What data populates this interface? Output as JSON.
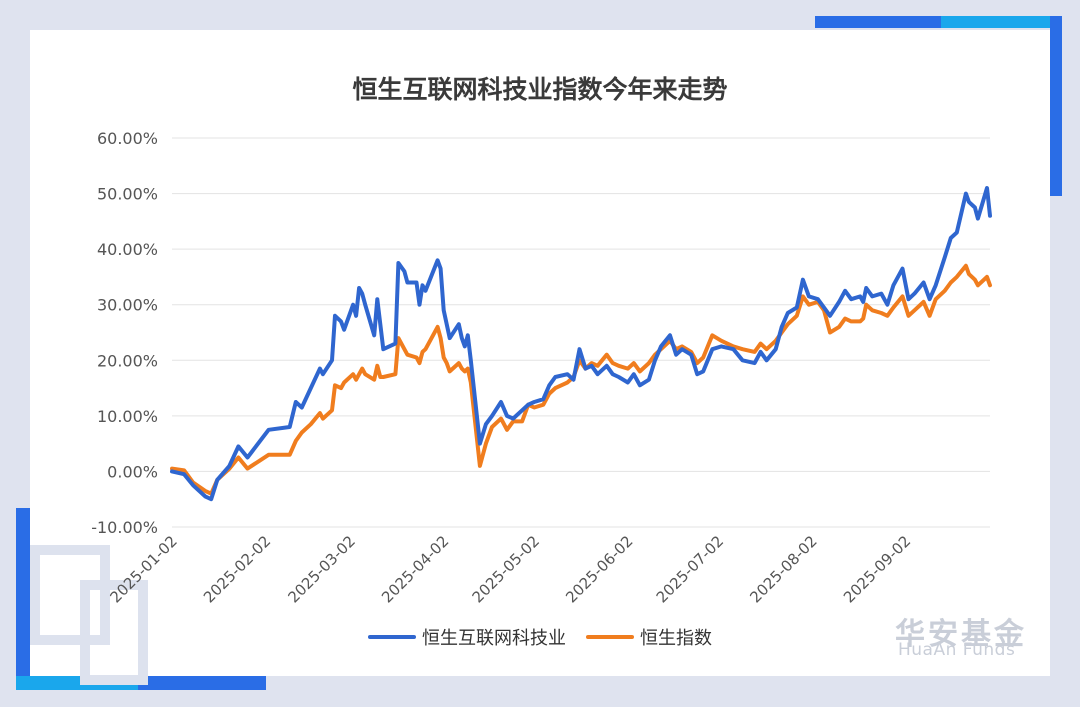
{
  "chart_data": {
    "type": "line",
    "title": "恒生互联网科技业指数今年来走势",
    "ylim": [
      -10,
      60
    ],
    "ytick_labels": [
      "60.00%",
      "50.00%",
      "40.00%",
      "30.00%",
      "20.00%",
      "10.00%",
      "0.00%",
      "-10.00%"
    ],
    "yticks": [
      60,
      50,
      40,
      30,
      20,
      10,
      0,
      -10
    ],
    "x_start": "2025-01-02",
    "x_end": "2025-09-30",
    "xtick_labels": [
      "2025-01-02",
      "2025-02-02",
      "2025-03-02",
      "2025-04-02",
      "2025-05-02",
      "2025-06-02",
      "2025-07-02",
      "2025-08-02",
      "2025-09-02"
    ],
    "grid": true,
    "legend": "bottom",
    "series": [
      {
        "name": "恒生互联网科技业",
        "color": "#2f66cf",
        "points": [
          [
            "2025-01-02",
            0.0
          ],
          [
            "2025-01-06",
            -0.5
          ],
          [
            "2025-01-09",
            -2.5
          ],
          [
            "2025-01-13",
            -4.5
          ],
          [
            "2025-01-15",
            -5.0
          ],
          [
            "2025-01-17",
            -1.5
          ],
          [
            "2025-01-21",
            1.0
          ],
          [
            "2025-01-24",
            4.5
          ],
          [
            "2025-01-27",
            2.5
          ],
          [
            "2025-02-03",
            7.5
          ],
          [
            "2025-02-10",
            8.0
          ],
          [
            "2025-02-12",
            12.5
          ],
          [
            "2025-02-14",
            11.5
          ],
          [
            "2025-02-17",
            15.0
          ],
          [
            "2025-02-20",
            18.5
          ],
          [
            "2025-02-21",
            17.5
          ],
          [
            "2025-02-24",
            20.0
          ],
          [
            "2025-02-25",
            28.0
          ],
          [
            "2025-02-27",
            27.0
          ],
          [
            "2025-02-28",
            25.5
          ],
          [
            "2025-03-03",
            30.0
          ],
          [
            "2025-03-04",
            28.0
          ],
          [
            "2025-03-05",
            33.0
          ],
          [
            "2025-03-06",
            32.0
          ],
          [
            "2025-03-07",
            30.0
          ],
          [
            "2025-03-10",
            24.5
          ],
          [
            "2025-03-11",
            31.0
          ],
          [
            "2025-03-12",
            26.5
          ],
          [
            "2025-03-13",
            22.0
          ],
          [
            "2025-03-17",
            23.0
          ],
          [
            "2025-03-18",
            37.5
          ],
          [
            "2025-03-20",
            36.0
          ],
          [
            "2025-03-21",
            34.0
          ],
          [
            "2025-03-24",
            34.0
          ],
          [
            "2025-03-25",
            30.0
          ],
          [
            "2025-03-26",
            33.5
          ],
          [
            "2025-03-27",
            32.5
          ],
          [
            "2025-03-31",
            38.0
          ],
          [
            "2025-04-01",
            36.5
          ],
          [
            "2025-04-02",
            29.0
          ],
          [
            "2025-04-03",
            26.5
          ],
          [
            "2025-04-04",
            24.0
          ],
          [
            "2025-04-07",
            26.5
          ],
          [
            "2025-04-08",
            24.0
          ],
          [
            "2025-04-09",
            22.5
          ],
          [
            "2025-04-10",
            24.5
          ],
          [
            "2025-04-11",
            20.0
          ],
          [
            "2025-04-14",
            5.0
          ],
          [
            "2025-04-16",
            8.5
          ],
          [
            "2025-04-18",
            10.0
          ],
          [
            "2025-04-21",
            12.5
          ],
          [
            "2025-04-23",
            10.0
          ],
          [
            "2025-04-25",
            9.5
          ],
          [
            "2025-04-28",
            11.0
          ],
          [
            "2025-04-30",
            12.0
          ],
          [
            "2025-05-02",
            12.5
          ],
          [
            "2025-05-05",
            13.0
          ],
          [
            "2025-05-07",
            15.5
          ],
          [
            "2025-05-09",
            17.0
          ],
          [
            "2025-05-13",
            17.5
          ],
          [
            "2025-05-15",
            16.5
          ],
          [
            "2025-05-17",
            22.0
          ],
          [
            "2025-05-19",
            18.5
          ],
          [
            "2025-05-21",
            19.0
          ],
          [
            "2025-05-23",
            17.5
          ],
          [
            "2025-05-26",
            19.0
          ],
          [
            "2025-05-28",
            17.5
          ],
          [
            "2025-05-30",
            17.0
          ],
          [
            "2025-06-02",
            16.0
          ],
          [
            "2025-06-04",
            17.5
          ],
          [
            "2025-06-06",
            15.5
          ],
          [
            "2025-06-09",
            16.5
          ],
          [
            "2025-06-11",
            20.0
          ],
          [
            "2025-06-13",
            22.5
          ],
          [
            "2025-06-16",
            24.5
          ],
          [
            "2025-06-18",
            21.0
          ],
          [
            "2025-06-20",
            22.0
          ],
          [
            "2025-06-23",
            21.0
          ],
          [
            "2025-06-25",
            17.5
          ],
          [
            "2025-06-27",
            18.0
          ],
          [
            "2025-06-30",
            22.0
          ],
          [
            "2025-07-03",
            22.5
          ],
          [
            "2025-07-07",
            22.0
          ],
          [
            "2025-07-10",
            20.0
          ],
          [
            "2025-07-14",
            19.5
          ],
          [
            "2025-07-16",
            21.5
          ],
          [
            "2025-07-18",
            20.0
          ],
          [
            "2025-07-21",
            22.0
          ],
          [
            "2025-07-23",
            26.0
          ],
          [
            "2025-07-25",
            28.5
          ],
          [
            "2025-07-28",
            29.5
          ],
          [
            "2025-07-30",
            34.5
          ],
          [
            "2025-08-01",
            31.5
          ],
          [
            "2025-08-04",
            31.0
          ],
          [
            "2025-08-06",
            29.5
          ],
          [
            "2025-08-08",
            28.0
          ],
          [
            "2025-08-11",
            30.5
          ],
          [
            "2025-08-13",
            32.5
          ],
          [
            "2025-08-15",
            31.0
          ],
          [
            "2025-08-18",
            31.5
          ],
          [
            "2025-08-19",
            30.5
          ],
          [
            "2025-08-20",
            33.0
          ],
          [
            "2025-08-22",
            31.5
          ],
          [
            "2025-08-25",
            32.0
          ],
          [
            "2025-08-27",
            30.0
          ],
          [
            "2025-08-29",
            33.5
          ],
          [
            "2025-09-01",
            36.5
          ],
          [
            "2025-09-03",
            31.0
          ],
          [
            "2025-09-05",
            32.0
          ],
          [
            "2025-09-08",
            34.0
          ],
          [
            "2025-09-10",
            31.0
          ],
          [
            "2025-09-12",
            33.5
          ],
          [
            "2025-09-15",
            38.5
          ],
          [
            "2025-09-17",
            42.0
          ],
          [
            "2025-09-19",
            43.0
          ],
          [
            "2025-09-22",
            50.0
          ],
          [
            "2025-09-23",
            48.5
          ],
          [
            "2025-09-25",
            47.5
          ],
          [
            "2025-09-26",
            45.5
          ],
          [
            "2025-09-29",
            51.0
          ],
          [
            "2025-09-30",
            46.0
          ]
        ]
      },
      {
        "name": "恒生指数",
        "color": "#f07d1e",
        "points": [
          [
            "2025-01-02",
            0.5
          ],
          [
            "2025-01-06",
            0.2
          ],
          [
            "2025-01-09",
            -2.0
          ],
          [
            "2025-01-13",
            -3.5
          ],
          [
            "2025-01-15",
            -4.0
          ],
          [
            "2025-01-17",
            -1.5
          ],
          [
            "2025-01-21",
            0.5
          ],
          [
            "2025-01-24",
            2.5
          ],
          [
            "2025-01-27",
            0.5
          ],
          [
            "2025-02-03",
            3.0
          ],
          [
            "2025-02-10",
            3.0
          ],
          [
            "2025-02-12",
            5.5
          ],
          [
            "2025-02-14",
            7.0
          ],
          [
            "2025-02-17",
            8.5
          ],
          [
            "2025-02-20",
            10.5
          ],
          [
            "2025-02-21",
            9.5
          ],
          [
            "2025-02-24",
            11.0
          ],
          [
            "2025-02-25",
            15.5
          ],
          [
            "2025-02-27",
            15.0
          ],
          [
            "2025-02-28",
            16.0
          ],
          [
            "2025-03-03",
            17.5
          ],
          [
            "2025-03-04",
            16.5
          ],
          [
            "2025-03-05",
            17.5
          ],
          [
            "2025-03-06",
            18.5
          ],
          [
            "2025-03-07",
            17.5
          ],
          [
            "2025-03-10",
            16.5
          ],
          [
            "2025-03-11",
            19.0
          ],
          [
            "2025-03-12",
            17.0
          ],
          [
            "2025-03-13",
            17.0
          ],
          [
            "2025-03-17",
            17.5
          ],
          [
            "2025-03-18",
            24.0
          ],
          [
            "2025-03-20",
            22.0
          ],
          [
            "2025-03-21",
            21.0
          ],
          [
            "2025-03-24",
            20.5
          ],
          [
            "2025-03-25",
            19.5
          ],
          [
            "2025-03-26",
            21.5
          ],
          [
            "2025-03-27",
            22.0
          ],
          [
            "2025-03-31",
            26.0
          ],
          [
            "2025-04-01",
            24.0
          ],
          [
            "2025-04-02",
            20.5
          ],
          [
            "2025-04-03",
            19.5
          ],
          [
            "2025-04-04",
            18.0
          ],
          [
            "2025-04-07",
            19.5
          ],
          [
            "2025-04-08",
            18.5
          ],
          [
            "2025-04-09",
            18.0
          ],
          [
            "2025-04-10",
            18.5
          ],
          [
            "2025-04-11",
            16.0
          ],
          [
            "2025-04-14",
            1.0
          ],
          [
            "2025-04-16",
            5.0
          ],
          [
            "2025-04-18",
            8.0
          ],
          [
            "2025-04-21",
            9.5
          ],
          [
            "2025-04-23",
            7.5
          ],
          [
            "2025-04-25",
            9.0
          ],
          [
            "2025-04-28",
            9.0
          ],
          [
            "2025-04-30",
            12.0
          ],
          [
            "2025-05-02",
            11.5
          ],
          [
            "2025-05-05",
            12.0
          ],
          [
            "2025-05-07",
            14.0
          ],
          [
            "2025-05-09",
            15.0
          ],
          [
            "2025-05-13",
            16.0
          ],
          [
            "2025-05-15",
            17.0
          ],
          [
            "2025-05-17",
            20.0
          ],
          [
            "2025-05-19",
            18.5
          ],
          [
            "2025-05-21",
            19.5
          ],
          [
            "2025-05-23",
            19.0
          ],
          [
            "2025-05-26",
            21.0
          ],
          [
            "2025-05-28",
            19.5
          ],
          [
            "2025-05-30",
            19.0
          ],
          [
            "2025-06-02",
            18.5
          ],
          [
            "2025-06-04",
            19.5
          ],
          [
            "2025-06-06",
            18.0
          ],
          [
            "2025-06-09",
            19.5
          ],
          [
            "2025-06-11",
            21.0
          ],
          [
            "2025-06-13",
            22.0
          ],
          [
            "2025-06-16",
            23.5
          ],
          [
            "2025-06-18",
            22.0
          ],
          [
            "2025-06-20",
            22.5
          ],
          [
            "2025-06-23",
            21.5
          ],
          [
            "2025-06-25",
            19.5
          ],
          [
            "2025-06-27",
            20.5
          ],
          [
            "2025-06-30",
            24.5
          ],
          [
            "2025-07-03",
            23.5
          ],
          [
            "2025-07-07",
            22.5
          ],
          [
            "2025-07-10",
            22.0
          ],
          [
            "2025-07-14",
            21.5
          ],
          [
            "2025-07-16",
            23.0
          ],
          [
            "2025-07-18",
            22.0
          ],
          [
            "2025-07-21",
            23.5
          ],
          [
            "2025-07-23",
            25.0
          ],
          [
            "2025-07-25",
            26.5
          ],
          [
            "2025-07-28",
            28.0
          ],
          [
            "2025-07-30",
            31.5
          ],
          [
            "2025-08-01",
            30.0
          ],
          [
            "2025-08-04",
            30.5
          ],
          [
            "2025-08-06",
            29.0
          ],
          [
            "2025-08-08",
            25.0
          ],
          [
            "2025-08-11",
            26.0
          ],
          [
            "2025-08-13",
            27.5
          ],
          [
            "2025-08-15",
            27.0
          ],
          [
            "2025-08-18",
            27.0
          ],
          [
            "2025-08-19",
            27.5
          ],
          [
            "2025-08-20",
            30.0
          ],
          [
            "2025-08-22",
            29.0
          ],
          [
            "2025-08-25",
            28.5
          ],
          [
            "2025-08-27",
            28.0
          ],
          [
            "2025-08-29",
            29.5
          ],
          [
            "2025-09-01",
            31.5
          ],
          [
            "2025-09-03",
            28.0
          ],
          [
            "2025-09-05",
            29.0
          ],
          [
            "2025-09-08",
            30.5
          ],
          [
            "2025-09-10",
            28.0
          ],
          [
            "2025-09-12",
            31.0
          ],
          [
            "2025-09-15",
            32.5
          ],
          [
            "2025-09-17",
            34.0
          ],
          [
            "2025-09-19",
            35.0
          ],
          [
            "2025-09-22",
            37.0
          ],
          [
            "2025-09-23",
            35.5
          ],
          [
            "2025-09-25",
            34.5
          ],
          [
            "2025-09-26",
            33.5
          ],
          [
            "2025-09-29",
            35.0
          ],
          [
            "2025-09-30",
            33.5
          ]
        ]
      }
    ]
  },
  "brand": {
    "name_cn": "华安基金",
    "name_en": "HuaAn Funds"
  }
}
